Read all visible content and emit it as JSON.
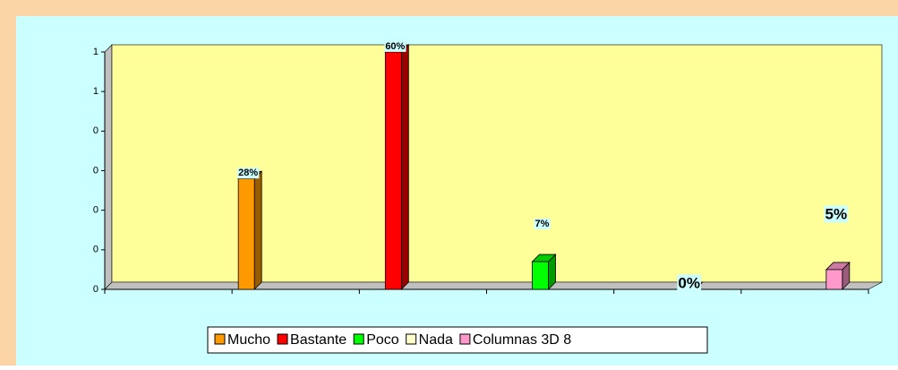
{
  "chart_data": {
    "type": "bar",
    "categories": [
      null,
      null,
      null,
      null,
      null,
      null
    ],
    "series": [
      {
        "name": "Mucho",
        "color": "#ff9900",
        "values": [
          null,
          0.28,
          null,
          null,
          null,
          null
        ],
        "value_labels": [
          null,
          "28%",
          null,
          null,
          null,
          null
        ]
      },
      {
        "name": "Bastante",
        "color": "#ff0000",
        "values": [
          null,
          null,
          0.6,
          null,
          null,
          null
        ],
        "value_labels": [
          null,
          null,
          "60%",
          null,
          null,
          null
        ]
      },
      {
        "name": "Poco",
        "color": "#00ff00",
        "values": [
          null,
          null,
          null,
          0.07,
          null,
          null
        ],
        "value_labels": [
          null,
          null,
          null,
          "7%",
          null,
          null
        ]
      },
      {
        "name": "Nada",
        "color": "#ffffcc",
        "values": [
          null,
          null,
          null,
          null,
          0,
          null
        ],
        "value_labels": [
          null,
          null,
          null,
          null,
          "0%",
          null
        ]
      },
      {
        "name": "Columnas 3D 8",
        "color": "#ff99cc",
        "values": [
          null,
          null,
          null,
          null,
          null,
          0.05
        ],
        "value_labels": [
          null,
          null,
          null,
          null,
          null,
          "5%"
        ]
      }
    ],
    "ylim": [
      0,
      0.6
    ],
    "yticks": [
      0,
      {
        "value": 0.1,
        "label": "0"
      },
      {
        "value": 0.2,
        "label": "0"
      },
      {
        "value": 0.3,
        "label": "0"
      },
      {
        "value": 0.4,
        "label": "0"
      },
      {
        "value": 0.5,
        "label": "1"
      },
      {
        "value": 0.6,
        "label": "1"
      }
    ],
    "legend": "bottom"
  }
}
